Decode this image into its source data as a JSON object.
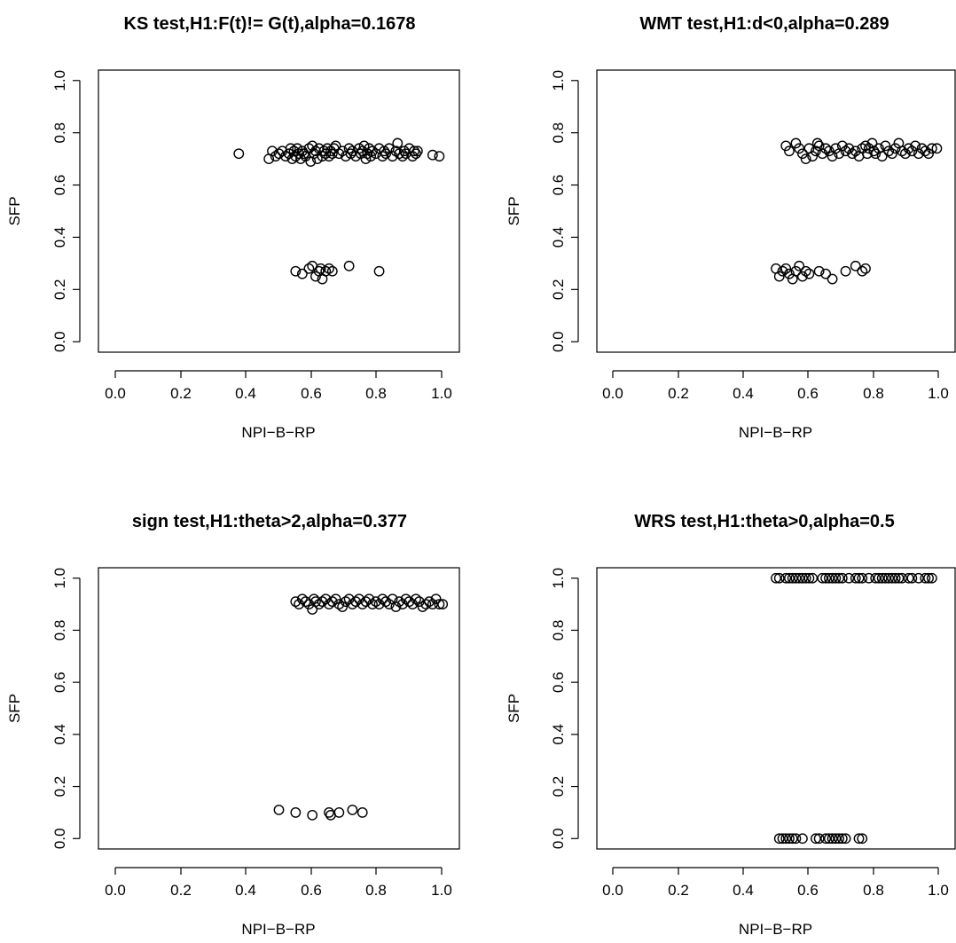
{
  "chart_data": [
    {
      "type": "scatter",
      "title": "KS test,H1:F(t)!= G(t),alpha=0.1678",
      "xlabel": "NPI−B−RP",
      "ylabel": "SFP",
      "xlim": [
        0,
        1
      ],
      "ylim": [
        0,
        1
      ],
      "xticks": [
        "0.0",
        "0.2",
        "0.4",
        "0.6",
        "0.8",
        "1.0"
      ],
      "yticks": [
        "0.0",
        "0.2",
        "0.4",
        "0.6",
        "0.8",
        "1.0"
      ],
      "grid": false,
      "x": [
        0.38,
        0.47,
        0.48,
        0.49,
        0.5,
        0.51,
        0.52,
        0.53,
        0.535,
        0.54,
        0.545,
        0.55,
        0.555,
        0.56,
        0.565,
        0.57,
        0.575,
        0.58,
        0.59,
        0.595,
        0.6,
        0.605,
        0.61,
        0.615,
        0.62,
        0.63,
        0.635,
        0.64,
        0.645,
        0.65,
        0.655,
        0.66,
        0.665,
        0.67,
        0.68,
        0.69,
        0.7,
        0.71,
        0.715,
        0.72,
        0.73,
        0.74,
        0.745,
        0.75,
        0.755,
        0.76,
        0.765,
        0.77,
        0.775,
        0.78,
        0.79,
        0.8,
        0.81,
        0.815,
        0.82,
        0.83,
        0.84,
        0.85,
        0.855,
        0.86,
        0.87,
        0.875,
        0.88,
        0.89,
        0.9,
        0.905,
        0.91,
        0.915,
        0.96,
        0.98,
        0.55,
        0.57,
        0.59,
        0.6,
        0.61,
        0.62,
        0.625,
        0.63,
        0.64,
        0.65,
        0.66,
        0.71,
        0.8
      ],
      "y": [
        0.72,
        0.7,
        0.73,
        0.71,
        0.72,
        0.73,
        0.71,
        0.72,
        0.74,
        0.7,
        0.73,
        0.71,
        0.74,
        0.72,
        0.7,
        0.73,
        0.72,
        0.71,
        0.74,
        0.69,
        0.75,
        0.72,
        0.73,
        0.7,
        0.74,
        0.71,
        0.73,
        0.72,
        0.74,
        0.71,
        0.73,
        0.72,
        0.74,
        0.75,
        0.72,
        0.73,
        0.71,
        0.74,
        0.72,
        0.73,
        0.71,
        0.74,
        0.72,
        0.73,
        0.75,
        0.7,
        0.72,
        0.74,
        0.71,
        0.73,
        0.72,
        0.74,
        0.71,
        0.73,
        0.72,
        0.74,
        0.71,
        0.73,
        0.76,
        0.72,
        0.71,
        0.73,
        0.72,
        0.74,
        0.71,
        0.73,
        0.72,
        0.73,
        0.715,
        0.71,
        0.27,
        0.26,
        0.28,
        0.29,
        0.25,
        0.27,
        0.28,
        0.24,
        0.27,
        0.28,
        0.27,
        0.29,
        0.27
      ],
      "series": []
    },
    {
      "type": "scatter",
      "title": "WMT test,H1:d<0,alpha=0.289",
      "xlabel": "NPI−B−RP",
      "ylabel": "SFP",
      "xlim": [
        0,
        1
      ],
      "ylim": [
        0,
        1
      ],
      "xticks": [
        "0.0",
        "0.2",
        "0.4",
        "0.6",
        "0.8",
        "1.0"
      ],
      "yticks": [
        "0.0",
        "0.2",
        "0.4",
        "0.6",
        "0.8",
        "1.0"
      ],
      "grid": false,
      "x": [
        0.53,
        0.54,
        0.56,
        0.57,
        0.58,
        0.59,
        0.6,
        0.61,
        0.62,
        0.625,
        0.63,
        0.64,
        0.65,
        0.66,
        0.67,
        0.68,
        0.69,
        0.7,
        0.71,
        0.72,
        0.73,
        0.74,
        0.75,
        0.76,
        0.77,
        0.775,
        0.78,
        0.79,
        0.795,
        0.8,
        0.81,
        0.82,
        0.83,
        0.84,
        0.85,
        0.86,
        0.87,
        0.88,
        0.89,
        0.9,
        0.91,
        0.92,
        0.93,
        0.94,
        0.95,
        0.96,
        0.97,
        0.985,
        0.5,
        0.51,
        0.52,
        0.53,
        0.54,
        0.55,
        0.56,
        0.57,
        0.58,
        0.59,
        0.6,
        0.63,
        0.65,
        0.67,
        0.71,
        0.74,
        0.76,
        0.77
      ],
      "y": [
        0.75,
        0.73,
        0.76,
        0.74,
        0.72,
        0.7,
        0.74,
        0.71,
        0.73,
        0.76,
        0.75,
        0.72,
        0.74,
        0.73,
        0.71,
        0.74,
        0.72,
        0.75,
        0.73,
        0.74,
        0.72,
        0.73,
        0.71,
        0.74,
        0.75,
        0.72,
        0.74,
        0.76,
        0.73,
        0.72,
        0.74,
        0.71,
        0.75,
        0.73,
        0.72,
        0.74,
        0.76,
        0.73,
        0.72,
        0.74,
        0.73,
        0.75,
        0.72,
        0.74,
        0.73,
        0.72,
        0.74,
        0.74,
        0.28,
        0.25,
        0.27,
        0.28,
        0.26,
        0.24,
        0.27,
        0.29,
        0.25,
        0.27,
        0.26,
        0.27,
        0.26,
        0.24,
        0.27,
        0.29,
        0.27,
        0.28
      ],
      "series": []
    },
    {
      "type": "scatter",
      "title": "sign test,H1:theta>2,alpha=0.377",
      "xlabel": "NPI−B−RP",
      "ylabel": "SFP",
      "xlim": [
        0,
        1
      ],
      "ylim": [
        0,
        1
      ],
      "xticks": [
        "0.0",
        "0.2",
        "0.4",
        "0.6",
        "0.8",
        "1.0"
      ],
      "yticks": [
        "0.0",
        "0.2",
        "0.4",
        "0.6",
        "0.8",
        "1.0"
      ],
      "grid": false,
      "x": [
        0.55,
        0.56,
        0.57,
        0.58,
        0.59,
        0.6,
        0.605,
        0.61,
        0.62,
        0.63,
        0.64,
        0.65,
        0.66,
        0.67,
        0.68,
        0.69,
        0.7,
        0.71,
        0.72,
        0.73,
        0.74,
        0.75,
        0.76,
        0.77,
        0.78,
        0.79,
        0.8,
        0.81,
        0.82,
        0.83,
        0.84,
        0.85,
        0.86,
        0.87,
        0.88,
        0.89,
        0.9,
        0.91,
        0.92,
        0.93,
        0.94,
        0.95,
        0.96,
        0.97,
        0.98,
        0.99,
        0.5,
        0.55,
        0.6,
        0.65,
        0.655,
        0.68,
        0.72,
        0.75
      ],
      "y": [
        0.91,
        0.9,
        0.92,
        0.91,
        0.9,
        0.88,
        0.92,
        0.91,
        0.9,
        0.91,
        0.92,
        0.9,
        0.91,
        0.92,
        0.9,
        0.89,
        0.91,
        0.92,
        0.9,
        0.91,
        0.92,
        0.9,
        0.91,
        0.92,
        0.9,
        0.91,
        0.9,
        0.92,
        0.91,
        0.9,
        0.92,
        0.89,
        0.91,
        0.9,
        0.92,
        0.91,
        0.9,
        0.92,
        0.91,
        0.89,
        0.9,
        0.91,
        0.9,
        0.92,
        0.9,
        0.9,
        0.11,
        0.1,
        0.09,
        0.1,
        0.09,
        0.1,
        0.11,
        0.1
      ],
      "series": []
    },
    {
      "type": "scatter",
      "title": "WRS test,H1:theta>0,alpha=0.5",
      "xlabel": "NPI−B−RP",
      "ylabel": "SFP",
      "xlim": [
        0,
        1
      ],
      "ylim": [
        0,
        1
      ],
      "xticks": [
        "0.0",
        "0.2",
        "0.4",
        "0.6",
        "0.8",
        "1.0"
      ],
      "yticks": [
        "0.0",
        "0.2",
        "0.4",
        "0.6",
        "0.8",
        "1.0"
      ],
      "grid": false,
      "x": [
        0.5,
        0.51,
        0.53,
        0.54,
        0.55,
        0.56,
        0.57,
        0.58,
        0.59,
        0.6,
        0.61,
        0.64,
        0.65,
        0.66,
        0.67,
        0.68,
        0.69,
        0.7,
        0.72,
        0.74,
        0.75,
        0.76,
        0.78,
        0.8,
        0.81,
        0.82,
        0.83,
        0.84,
        0.85,
        0.86,
        0.87,
        0.88,
        0.9,
        0.91,
        0.93,
        0.95,
        0.96,
        0.97,
        0.51,
        0.52,
        0.53,
        0.54,
        0.55,
        0.56,
        0.58,
        0.62,
        0.63,
        0.65,
        0.66,
        0.67,
        0.68,
        0.69,
        0.7,
        0.71,
        0.75,
        0.76
      ],
      "y": [
        1,
        1,
        1,
        1,
        1,
        1,
        1,
        1,
        1,
        1,
        1,
        1,
        1,
        1,
        1,
        1,
        1,
        1,
        1,
        1,
        1,
        1,
        1,
        1,
        1,
        1,
        1,
        1,
        1,
        1,
        1,
        1,
        1,
        1,
        1,
        1,
        1,
        1,
        0,
        0,
        0,
        0,
        0,
        0,
        0,
        0,
        0,
        0,
        0,
        0,
        0,
        0,
        0,
        0,
        0,
        0
      ],
      "series": []
    }
  ]
}
